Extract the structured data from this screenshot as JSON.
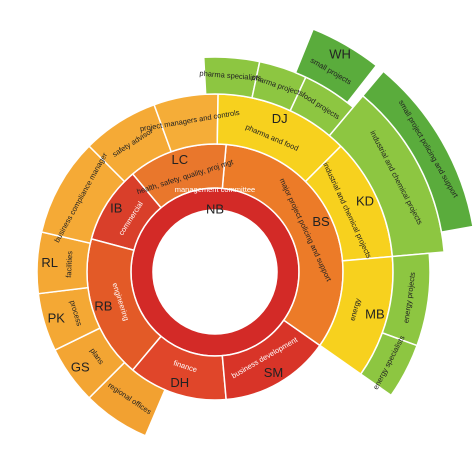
{
  "nodes": [
    {
      "code": "NB",
      "label": "management committee"
    },
    {
      "code": "IB",
      "label": "commercial"
    },
    {
      "code": "RB",
      "label": "engineering"
    },
    {
      "code": "DH",
      "label": "finance"
    },
    {
      "code": "SM",
      "label": "business development"
    },
    {
      "code": "BS",
      "label": "major project policing and support"
    },
    {
      "code": "LC",
      "label": "health, safety, quality, proj mgt"
    },
    {
      "label": "regional offices"
    },
    {
      "code": "GS",
      "label": "plans"
    },
    {
      "code": "PK",
      "label": "process"
    },
    {
      "code": "RL",
      "label": "facilities"
    },
    {
      "label": "business compliance manager"
    },
    {
      "label": "safety advisor"
    },
    {
      "label": "project managers and controls"
    },
    {
      "code": "DJ",
      "label": "pharma and food"
    },
    {
      "code": "KD",
      "label": "industrial and chemical projects"
    },
    {
      "code": "MB",
      "label": "energy"
    },
    {
      "label": "pharma specialists"
    },
    {
      "label": "pharma projects"
    },
    {
      "label": "food projects"
    },
    {
      "label": "industrial and chemical projects"
    },
    {
      "label": "energy projects"
    },
    {
      "label": "energy specialists"
    },
    {
      "code": "WH",
      "label": "small projects"
    },
    {
      "label": "small project policing and support"
    }
  ]
}
